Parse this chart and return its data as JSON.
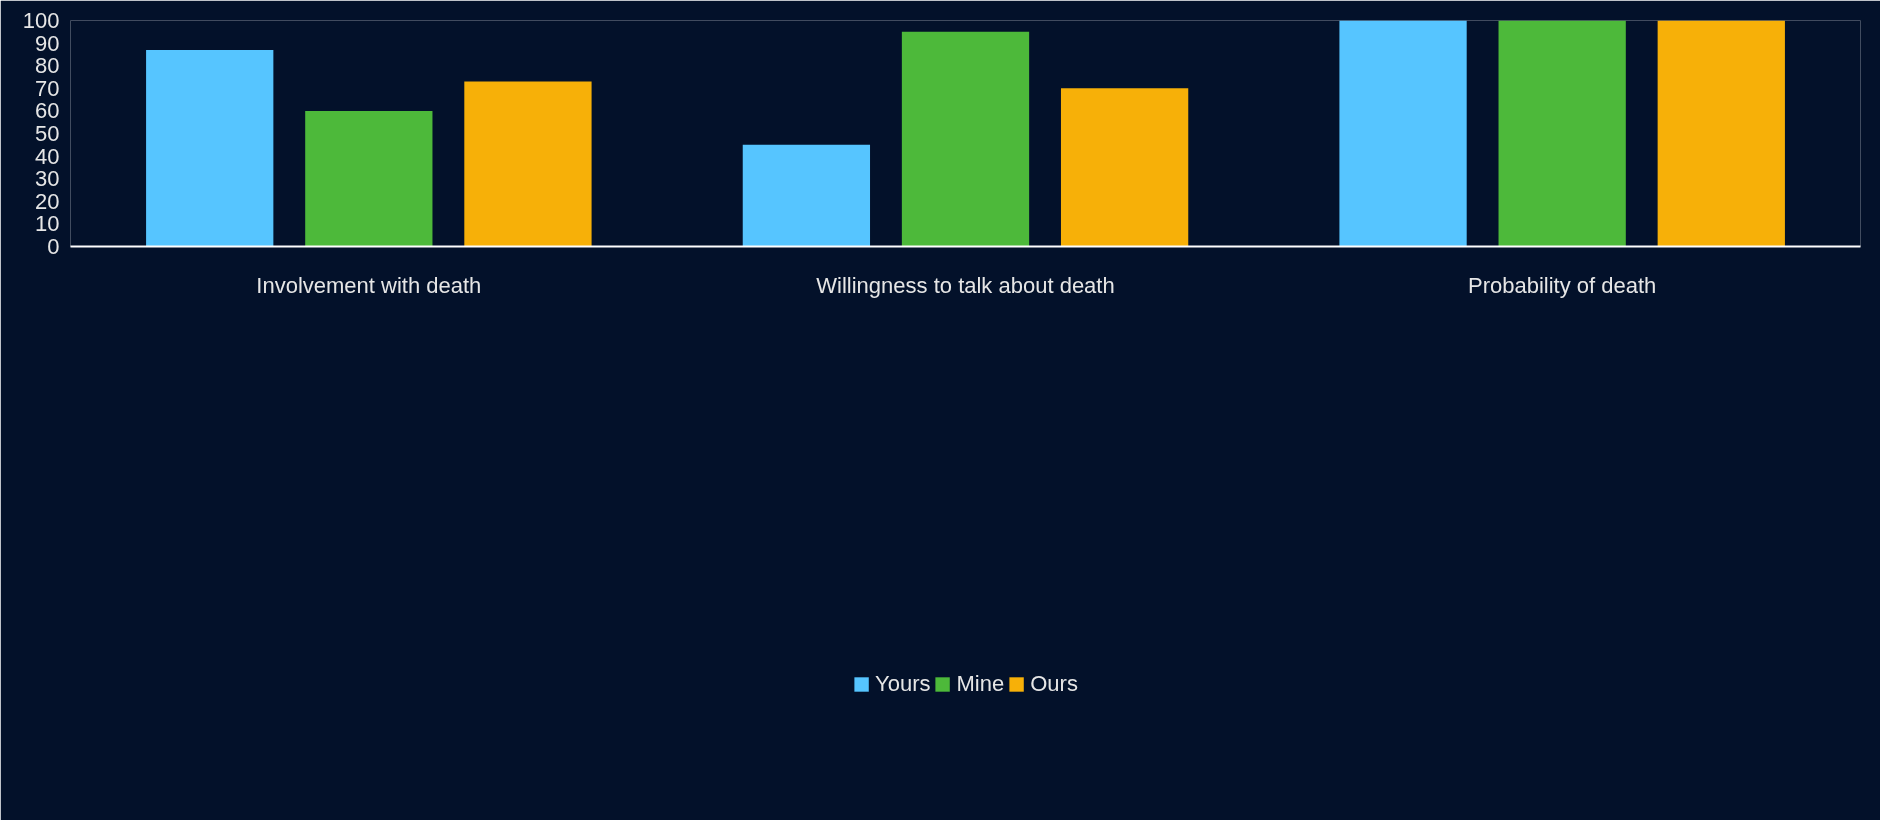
{
  "chart_data": {
    "type": "bar",
    "categories": [
      "Involvement with death",
      "Willingness to talk about death",
      "Probability of death"
    ],
    "series": [
      {
        "name": "Yours",
        "color": "#56c5ff",
        "values": [
          87,
          45,
          100
        ]
      },
      {
        "name": "Mine",
        "color": "#4db93a",
        "values": [
          60,
          95,
          100
        ]
      },
      {
        "name": "Ours",
        "color": "#f7b008",
        "values": [
          73,
          70,
          100
        ]
      }
    ],
    "ylim": [
      0,
      100
    ],
    "yticks": [
      0,
      10,
      20,
      30,
      40,
      50,
      60,
      70,
      80,
      90,
      100
    ],
    "grid": false,
    "legend": "bottom"
  }
}
